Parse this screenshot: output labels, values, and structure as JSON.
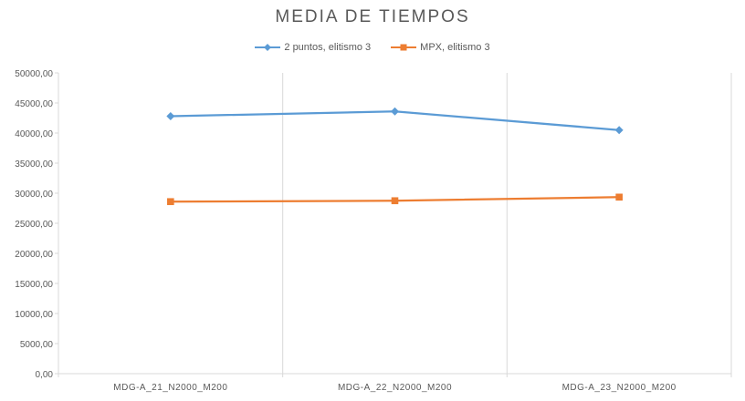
{
  "chart_data": {
    "type": "line",
    "title": "MEDIA DE TIEMPOS",
    "categories": [
      "MDG-A_21_N2000_M200",
      "MDG-A_22_N2000_M200",
      "MDG-A_23_N2000_M200"
    ],
    "series": [
      {
        "name": "2 puntos, elitismo 3",
        "values": [
          42800,
          43600,
          40500
        ],
        "color": "#5b9bd5",
        "marker": "diamond"
      },
      {
        "name": "MPX, elitismo 3",
        "values": [
          28600,
          28750,
          29350
        ],
        "color": "#ed7d31",
        "marker": "square"
      }
    ],
    "ylim": [
      0,
      50000
    ],
    "yticks": [
      "0,00",
      "5000,00",
      "10000,00",
      "15000,00",
      "20000,00",
      "25000,00",
      "30000,00",
      "35000,00",
      "40000,00",
      "45000,00",
      "50000,00"
    ],
    "ytick_values": [
      0,
      5000,
      10000,
      15000,
      20000,
      25000,
      30000,
      35000,
      40000,
      45000,
      50000
    ],
    "grid": "vertical",
    "legend_position": "top",
    "axis_color": "#d9d9d9",
    "text_color": "#595959"
  }
}
